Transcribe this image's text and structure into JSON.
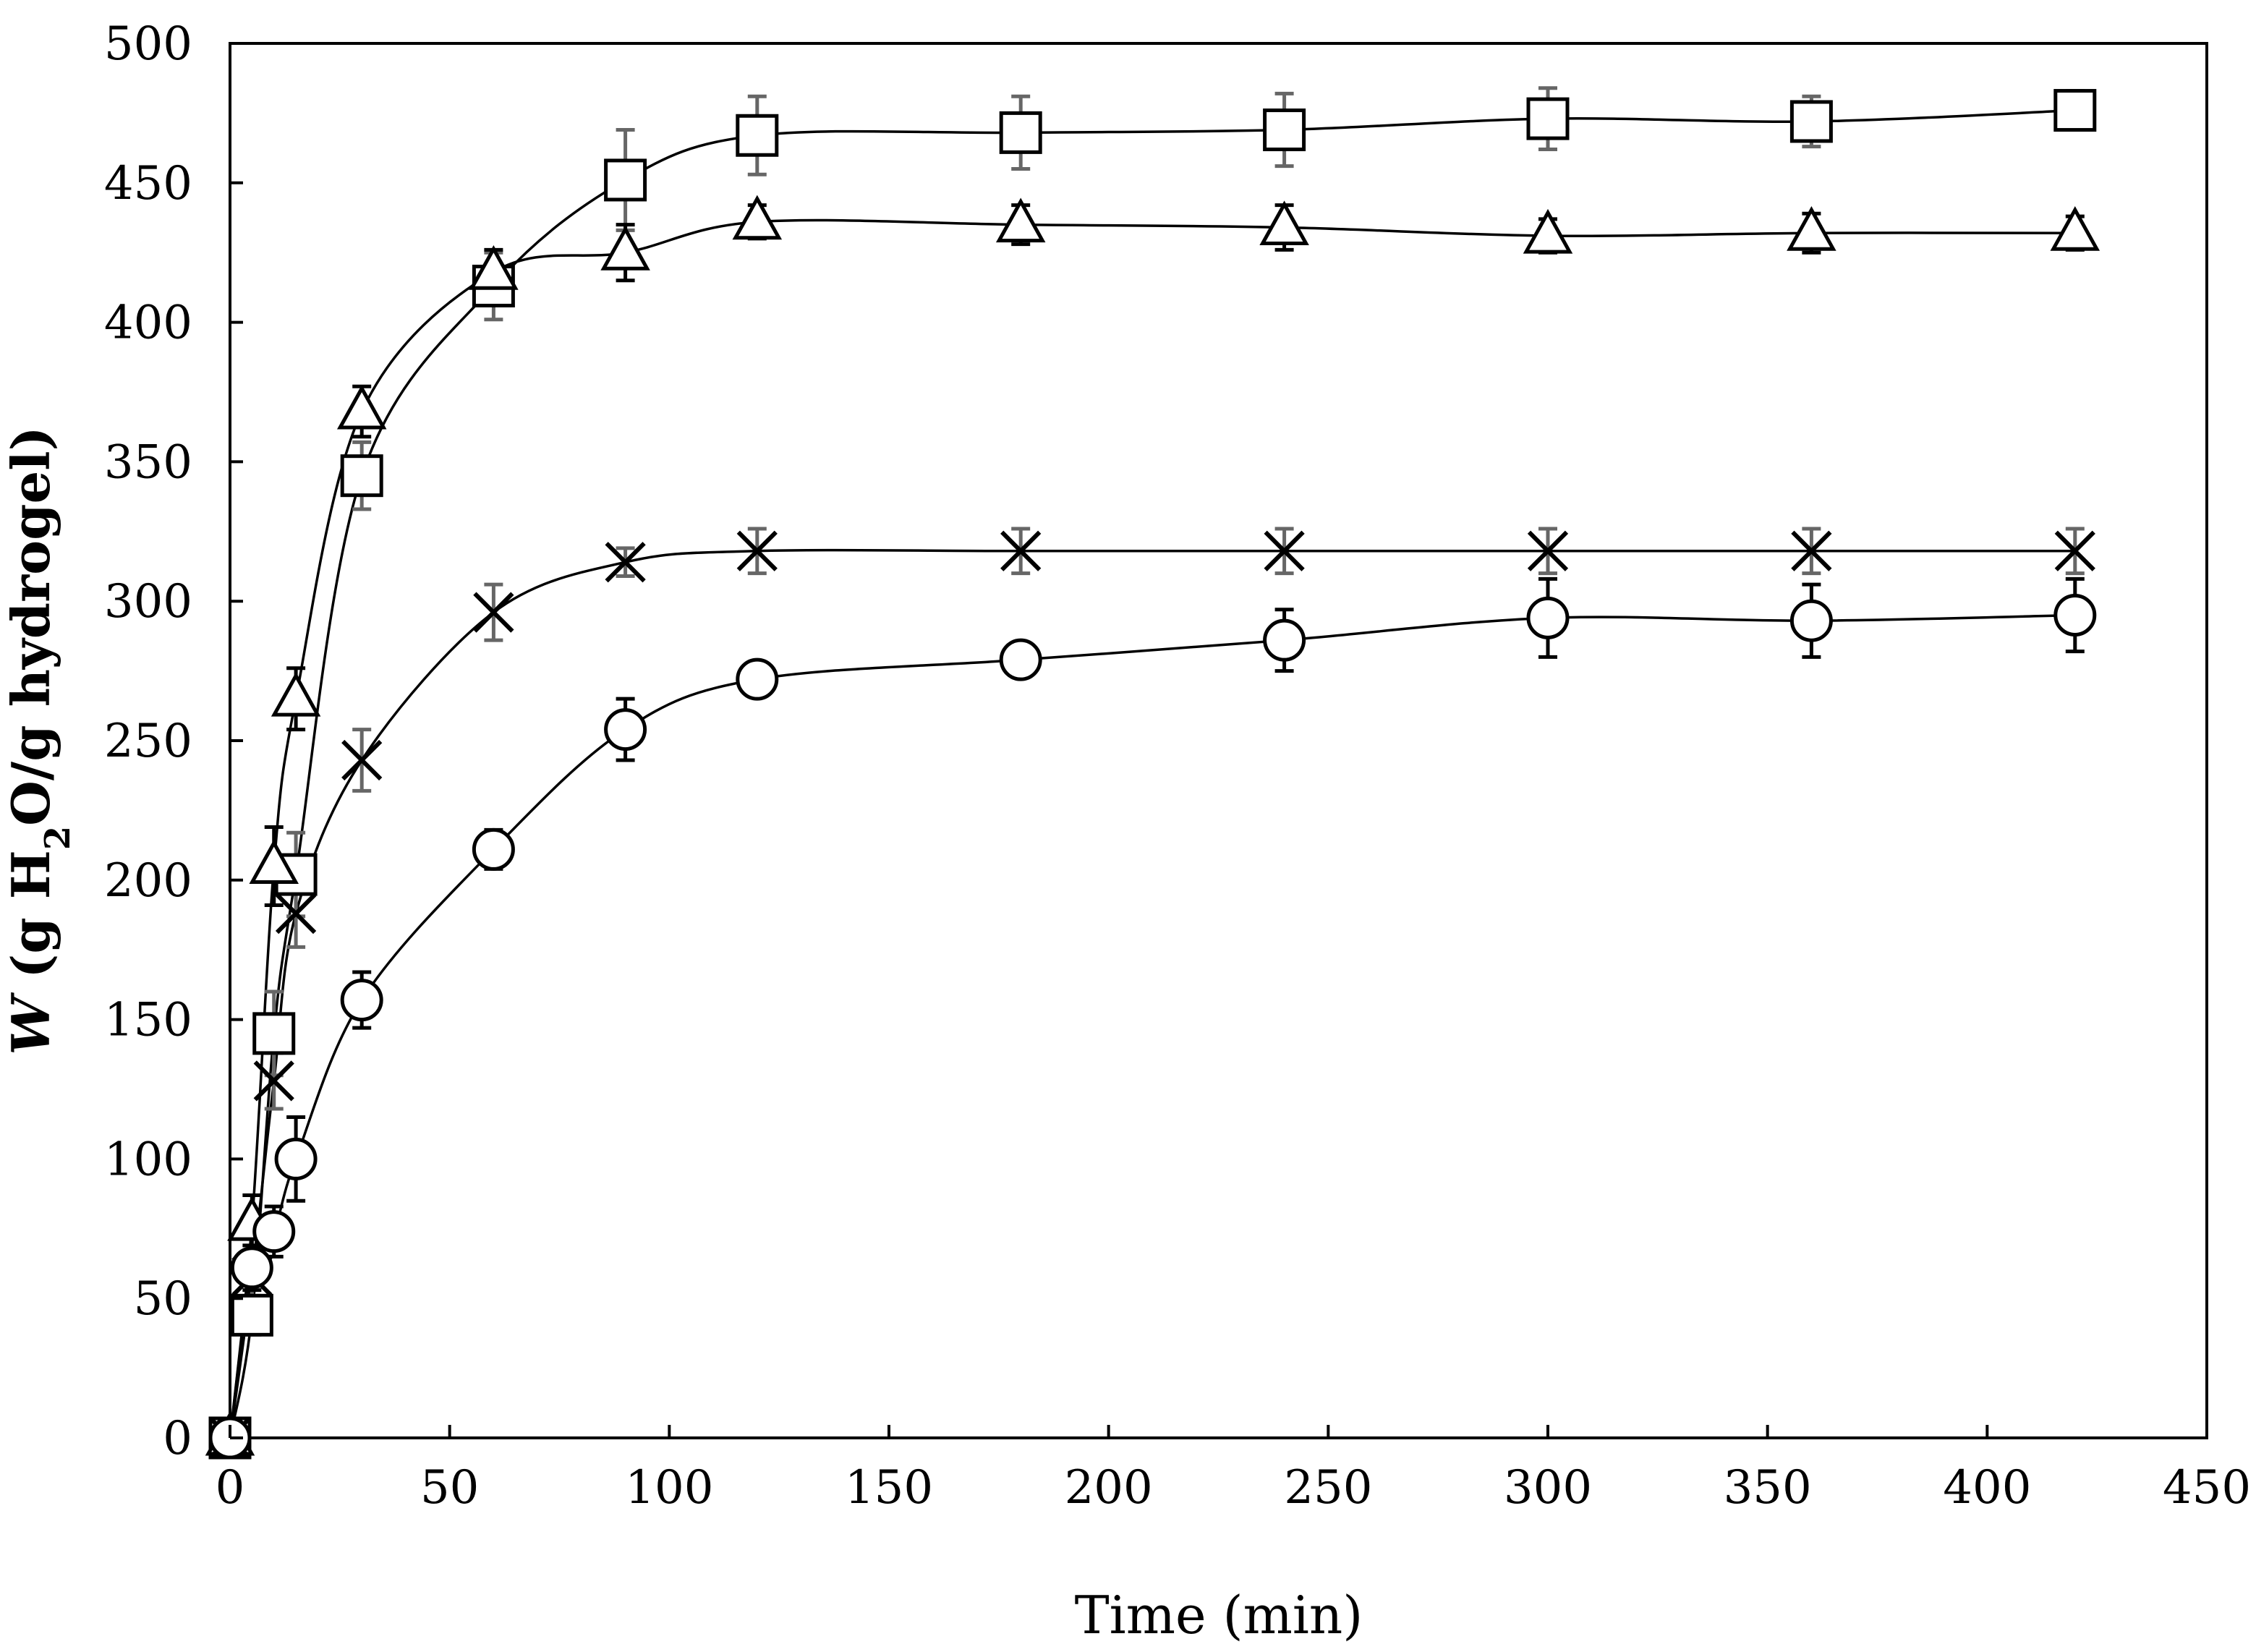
{
  "chart_data": {
    "type": "scatter",
    "xlabel": "Time (min)",
    "ylabel_parts": [
      "W",
      " (g H",
      "2",
      "O/g hydrogel)"
    ],
    "xlim": [
      0,
      450
    ],
    "ylim": [
      0,
      500
    ],
    "x_ticks": [
      "0",
      "50",
      "100",
      "150",
      "200",
      "250",
      "300",
      "350",
      "400",
      "450"
    ],
    "y_ticks": [
      "0",
      "50",
      "100",
      "150",
      "200",
      "250",
      "300",
      "350",
      "400",
      "450",
      "500"
    ],
    "grid": false,
    "legend": "none",
    "series": [
      {
        "name": "square",
        "marker": "square",
        "error_color": "#666666",
        "points": [
          {
            "x": 0,
            "y": 0,
            "err": 0
          },
          {
            "x": 5,
            "y": 44,
            "err": 7
          },
          {
            "x": 10,
            "y": 145,
            "err": 15
          },
          {
            "x": 15,
            "y": 202,
            "err": 15
          },
          {
            "x": 30,
            "y": 345,
            "err": 12
          },
          {
            "x": 60,
            "y": 413,
            "err": 12
          },
          {
            "x": 90,
            "y": 451,
            "err": 18
          },
          {
            "x": 120,
            "y": 467,
            "err": 14
          },
          {
            "x": 180,
            "y": 468,
            "err": 13
          },
          {
            "x": 240,
            "y": 469,
            "err": 13
          },
          {
            "x": 300,
            "y": 473,
            "err": 11
          },
          {
            "x": 360,
            "y": 472,
            "err": 9
          },
          {
            "x": 420,
            "y": 476,
            "err": 7
          }
        ]
      },
      {
        "name": "triangle",
        "marker": "triangle",
        "error_color": "#000000",
        "points": [
          {
            "x": 0,
            "y": 0,
            "err": 0
          },
          {
            "x": 5,
            "y": 77,
            "err": 10
          },
          {
            "x": 10,
            "y": 205,
            "err": 14
          },
          {
            "x": 15,
            "y": 265,
            "err": 11
          },
          {
            "x": 30,
            "y": 368,
            "err": 9
          },
          {
            "x": 60,
            "y": 418,
            "err": 8
          },
          {
            "x": 90,
            "y": 425,
            "err": 10
          },
          {
            "x": 120,
            "y": 436,
            "err": 6
          },
          {
            "x": 180,
            "y": 435,
            "err": 7
          },
          {
            "x": 240,
            "y": 434,
            "err": 8
          },
          {
            "x": 300,
            "y": 431,
            "err": 6
          },
          {
            "x": 360,
            "y": 432,
            "err": 7
          },
          {
            "x": 420,
            "y": 432,
            "err": 6
          }
        ]
      },
      {
        "name": "cross",
        "marker": "x",
        "error_color": "#666666",
        "points": [
          {
            "x": 0,
            "y": 0,
            "err": 0
          },
          {
            "x": 5,
            "y": 58,
            "err": 8
          },
          {
            "x": 10,
            "y": 128,
            "err": 10
          },
          {
            "x": 15,
            "y": 188,
            "err": 12
          },
          {
            "x": 30,
            "y": 243,
            "err": 11
          },
          {
            "x": 60,
            "y": 296,
            "err": 10
          },
          {
            "x": 90,
            "y": 314,
            "err": 5
          },
          {
            "x": 120,
            "y": 318,
            "err": 8
          },
          {
            "x": 180,
            "y": 318,
            "err": 8
          },
          {
            "x": 240,
            "y": 318,
            "err": 8
          },
          {
            "x": 300,
            "y": 318,
            "err": 8
          },
          {
            "x": 360,
            "y": 318,
            "err": 8
          },
          {
            "x": 420,
            "y": 318,
            "err": 8
          }
        ]
      },
      {
        "name": "circle",
        "marker": "circle",
        "error_color": "#000000",
        "points": [
          {
            "x": 0,
            "y": 0,
            "err": 0
          },
          {
            "x": 5,
            "y": 61,
            "err": 8
          },
          {
            "x": 10,
            "y": 74,
            "err": 9
          },
          {
            "x": 15,
            "y": 100,
            "err": 15
          },
          {
            "x": 30,
            "y": 157,
            "err": 10
          },
          {
            "x": 60,
            "y": 211,
            "err": 7
          },
          {
            "x": 90,
            "y": 254,
            "err": 11
          },
          {
            "x": 120,
            "y": 272,
            "err": 5
          },
          {
            "x": 180,
            "y": 279,
            "err": 5
          },
          {
            "x": 240,
            "y": 286,
            "err": 11
          },
          {
            "x": 300,
            "y": 294,
            "err": 14
          },
          {
            "x": 360,
            "y": 293,
            "err": 13
          },
          {
            "x": 420,
            "y": 295,
            "err": 13
          }
        ]
      }
    ]
  }
}
